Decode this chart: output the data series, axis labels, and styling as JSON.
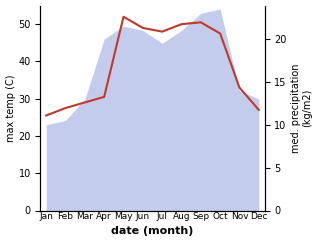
{
  "months": [
    "Jan",
    "Feb",
    "Mar",
    "Apr",
    "May",
    "Jun",
    "Jul",
    "Aug",
    "Sep",
    "Oct",
    "Nov",
    "Dec"
  ],
  "temp_max": [
    25.5,
    27.5,
    29.0,
    30.5,
    52.0,
    49.0,
    48.0,
    50.0,
    50.5,
    47.5,
    33.0,
    27.0
  ],
  "precip": [
    10.0,
    10.5,
    13.0,
    20.0,
    21.5,
    21.0,
    19.5,
    21.0,
    23.0,
    23.5,
    14.0,
    13.0
  ],
  "temp_color": "#c0392b",
  "precip_fill_color": "#b0bce8",
  "precip_fill_alpha": 0.75,
  "temp_ylim": [
    0,
    55
  ],
  "precip_ylim": [
    0,
    23.9
  ],
  "temp_yticks": [
    0,
    10,
    20,
    30,
    40,
    50
  ],
  "precip_yticks": [
    0,
    5,
    10,
    15,
    20
  ],
  "ylabel_left": "max temp (C)",
  "ylabel_right": "med. precipitation\n(kg/m2)",
  "xlabel": "date (month)",
  "bg_color": "#ffffff",
  "temp_linewidth": 1.5,
  "xlabel_fontsize": 8,
  "ylabel_fontsize": 7,
  "tick_fontsize": 7,
  "month_fontsize": 6.5
}
